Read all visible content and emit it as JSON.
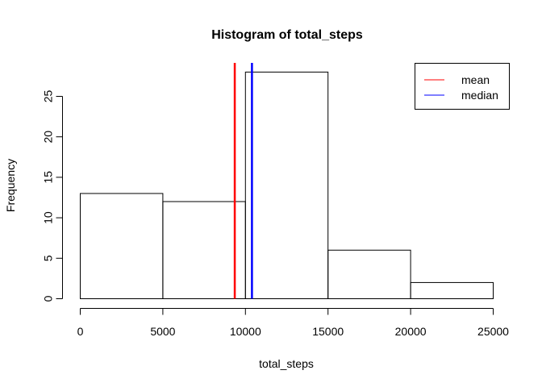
{
  "chart_data": {
    "type": "bar",
    "title": "Histogram of total_steps",
    "xlabel": "total_steps",
    "ylabel": "Frequency",
    "bins": [
      {
        "start": 0,
        "end": 5000,
        "count": 13
      },
      {
        "start": 5000,
        "end": 10000,
        "count": 12
      },
      {
        "start": 10000,
        "end": 15000,
        "count": 28
      },
      {
        "start": 15000,
        "end": 20000,
        "count": 6
      },
      {
        "start": 20000,
        "end": 25000,
        "count": 2
      }
    ],
    "xticks": [
      0,
      5000,
      10000,
      15000,
      20000,
      25000
    ],
    "yticks": [
      0,
      5,
      10,
      15,
      20,
      25
    ],
    "xlim": [
      0,
      25000
    ],
    "ylim": [
      0,
      28
    ],
    "reference_lines": [
      {
        "name": "mean",
        "value": 9354,
        "color": "#ff0000"
      },
      {
        "name": "median",
        "value": 10395,
        "color": "#0000ff"
      }
    ],
    "legend": {
      "position": "top-right",
      "entries": [
        {
          "label": "mean",
          "color": "#ff5555"
        },
        {
          "label": "median",
          "color": "#5555ff"
        }
      ]
    },
    "grid": false
  }
}
